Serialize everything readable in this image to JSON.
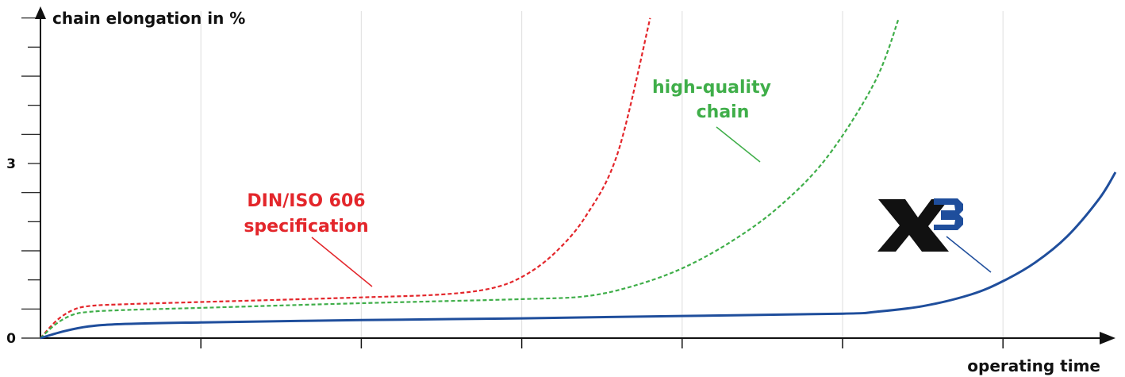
{
  "chart_data": {
    "type": "line",
    "ylabel": "chain elongation in %",
    "xlabel": "operating time",
    "y_tick_labels": [
      {
        "value": 0,
        "label": "0"
      },
      {
        "value": 3,
        "label": "3"
      }
    ],
    "ylim": [
      0,
      5.5
    ],
    "xlim": [
      0,
      6.7
    ],
    "grid": true,
    "series": [
      {
        "name": "DIN/ISO 606 specification",
        "style": "dotted",
        "color": "#e3262b",
        "x": [
          0,
          0.1,
          0.2,
          0.3,
          0.5,
          1,
          2,
          2.5,
          2.8,
          3.0,
          3.2,
          3.4,
          3.6,
          3.8
        ],
        "y": [
          0,
          0.3,
          0.48,
          0.55,
          0.58,
          0.62,
          0.7,
          0.75,
          0.85,
          1.05,
          1.45,
          2.1,
          3.2,
          5.5
        ]
      },
      {
        "name": "high-quality chain",
        "style": "dotted",
        "color": "#3fae49",
        "x": [
          0,
          0.1,
          0.2,
          0.3,
          0.5,
          1,
          2,
          3,
          3.4,
          3.7,
          4.0,
          4.3,
          4.6,
          4.9,
          5.2,
          5.35
        ],
        "y": [
          0,
          0.25,
          0.4,
          0.45,
          0.48,
          0.52,
          0.6,
          0.67,
          0.72,
          0.9,
          1.2,
          1.65,
          2.25,
          3.1,
          4.4,
          5.5
        ]
      },
      {
        "name": "X3",
        "style": "solid",
        "color": "#1f4e9c",
        "x": [
          0,
          0.15,
          0.3,
          0.5,
          1,
          2,
          3,
          4,
          5,
          5.2,
          5.5,
          5.8,
          6.0,
          6.2,
          6.4,
          6.6,
          6.7
        ],
        "y": [
          0,
          0.12,
          0.2,
          0.24,
          0.27,
          0.31,
          0.34,
          0.38,
          0.42,
          0.45,
          0.55,
          0.75,
          0.98,
          1.3,
          1.75,
          2.4,
          2.85
        ]
      }
    ],
    "annotations": {
      "red_line1": "DIN/ISO 606",
      "red_line2": "specification",
      "green_line1": "high-quality",
      "green_line2": "chain",
      "logo": "X3"
    }
  }
}
